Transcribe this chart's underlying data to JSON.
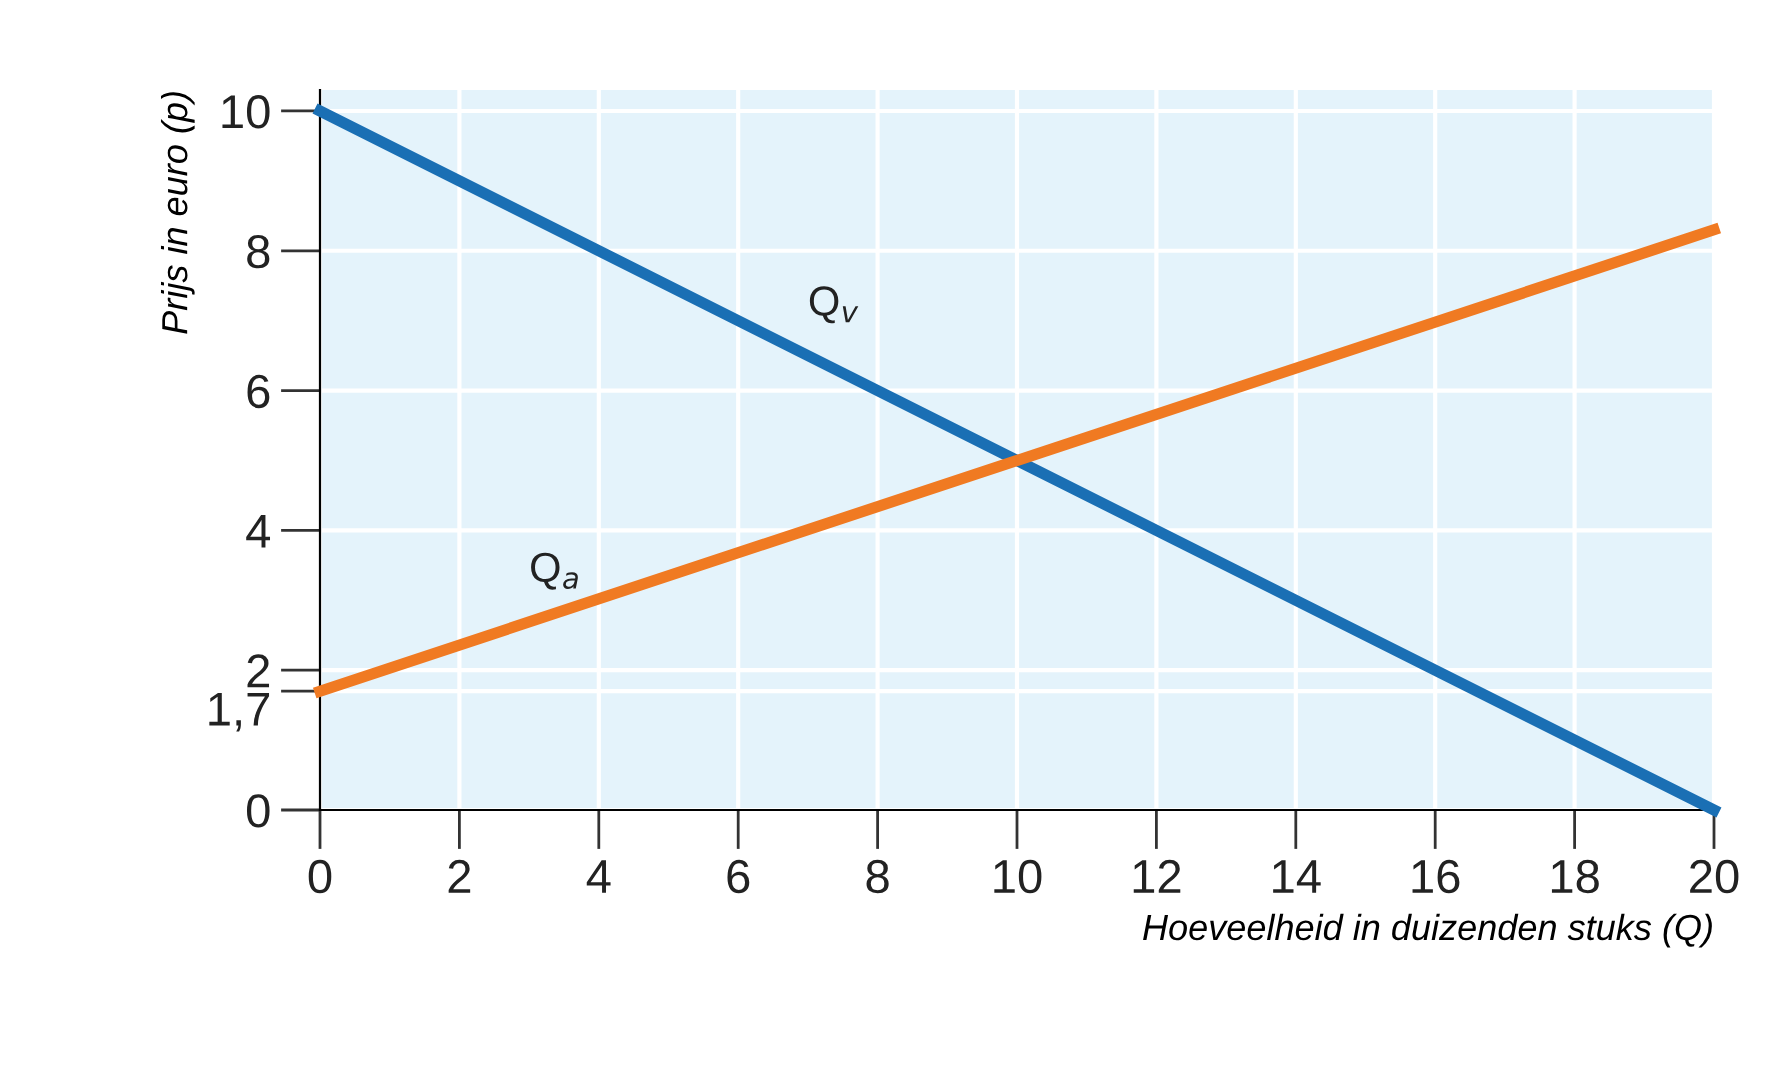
{
  "chart_data": {
    "type": "line",
    "xlabel": "Hoeveelheid in duizenden stuks (Q)",
    "ylabel": "Prijs in euro (p)",
    "x": [
      0,
      20
    ],
    "series": [
      {
        "name": "Q$_{v}$",
        "color": "#1a6fb4",
        "values": [
          10,
          0
        ]
      },
      {
        "name": "Q$_{a}$",
        "color": "#f07a22",
        "values": [
          1.7,
          8.3
        ]
      }
    ],
    "xlim": [
      0,
      20
    ],
    "ylim": [
      0,
      10.3
    ],
    "xticks": [
      0,
      2,
      4,
      6,
      8,
      10,
      12,
      14,
      16,
      18,
      20
    ],
    "yticks": [
      0,
      {
        "value": 1.7,
        "label": "1,7"
      },
      2,
      4,
      6,
      8,
      10
    ],
    "grid": true,
    "legend": false,
    "marker": "none",
    "line_style": "solid"
  }
}
